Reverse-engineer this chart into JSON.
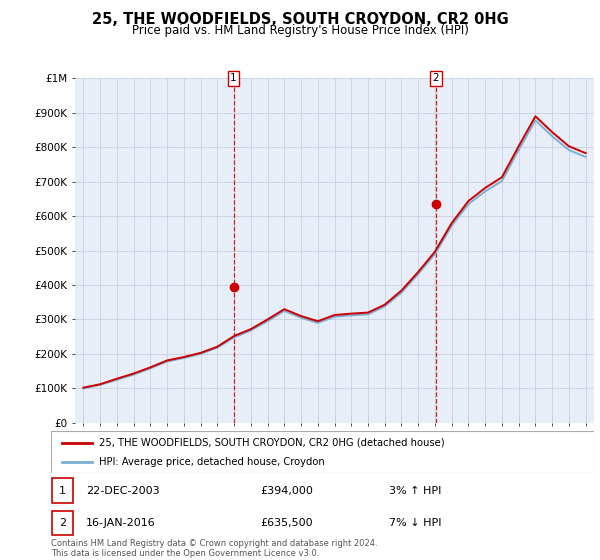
{
  "title": "25, THE WOODFIELDS, SOUTH CROYDON, CR2 0HG",
  "subtitle": "Price paid vs. HM Land Registry's House Price Index (HPI)",
  "ylabel_ticks": [
    "£0",
    "£100K",
    "£200K",
    "£300K",
    "£400K",
    "£500K",
    "£600K",
    "£700K",
    "£800K",
    "£900K",
    "£1M"
  ],
  "ytick_vals": [
    0,
    100000,
    200000,
    300000,
    400000,
    500000,
    600000,
    700000,
    800000,
    900000,
    1000000
  ],
  "years": [
    1995,
    1996,
    1997,
    1998,
    1999,
    2000,
    2001,
    2002,
    2003,
    2004,
    2005,
    2006,
    2007,
    2008,
    2009,
    2010,
    2011,
    2012,
    2013,
    2014,
    2015,
    2016,
    2017,
    2018,
    2019,
    2020,
    2021,
    2022,
    2023,
    2024,
    2025
  ],
  "hpi_values": [
    100000,
    110000,
    125000,
    140000,
    158000,
    178000,
    188000,
    200000,
    218000,
    248000,
    268000,
    295000,
    325000,
    305000,
    290000,
    308000,
    312000,
    315000,
    338000,
    378000,
    432000,
    490000,
    572000,
    635000,
    672000,
    702000,
    792000,
    878000,
    832000,
    792000,
    772000
  ],
  "red_values": [
    102000,
    112000,
    128000,
    143000,
    161000,
    181000,
    191000,
    203000,
    221000,
    252000,
    272000,
    300000,
    330000,
    310000,
    295000,
    313000,
    317000,
    320000,
    343000,
    384000,
    438000,
    497000,
    580000,
    644000,
    682000,
    713000,
    803000,
    890000,
    844000,
    803000,
    783000
  ],
  "price_paid_years": [
    2003.97,
    2016.04
  ],
  "price_paid_values": [
    394000,
    635500
  ],
  "legend_line1": "25, THE WOODFIELDS, SOUTH CROYDON, CR2 0HG (detached house)",
  "legend_line2": "HPI: Average price, detached house, Croydon",
  "footer": "Contains HM Land Registry data © Crown copyright and database right 2024.\nThis data is licensed under the Open Government Licence v3.0.",
  "line_color_red": "#cc0000",
  "line_color_blue": "#7bafd4",
  "background_color": "#e8eef8",
  "grid_color": "#c8d0e0",
  "title_fontsize": 10.5,
  "subtitle_fontsize": 8.5,
  "tick_fontsize": 7.5,
  "ylim": [
    0,
    1000000
  ],
  "xlim_start": 1994.5,
  "xlim_end": 2025.5
}
